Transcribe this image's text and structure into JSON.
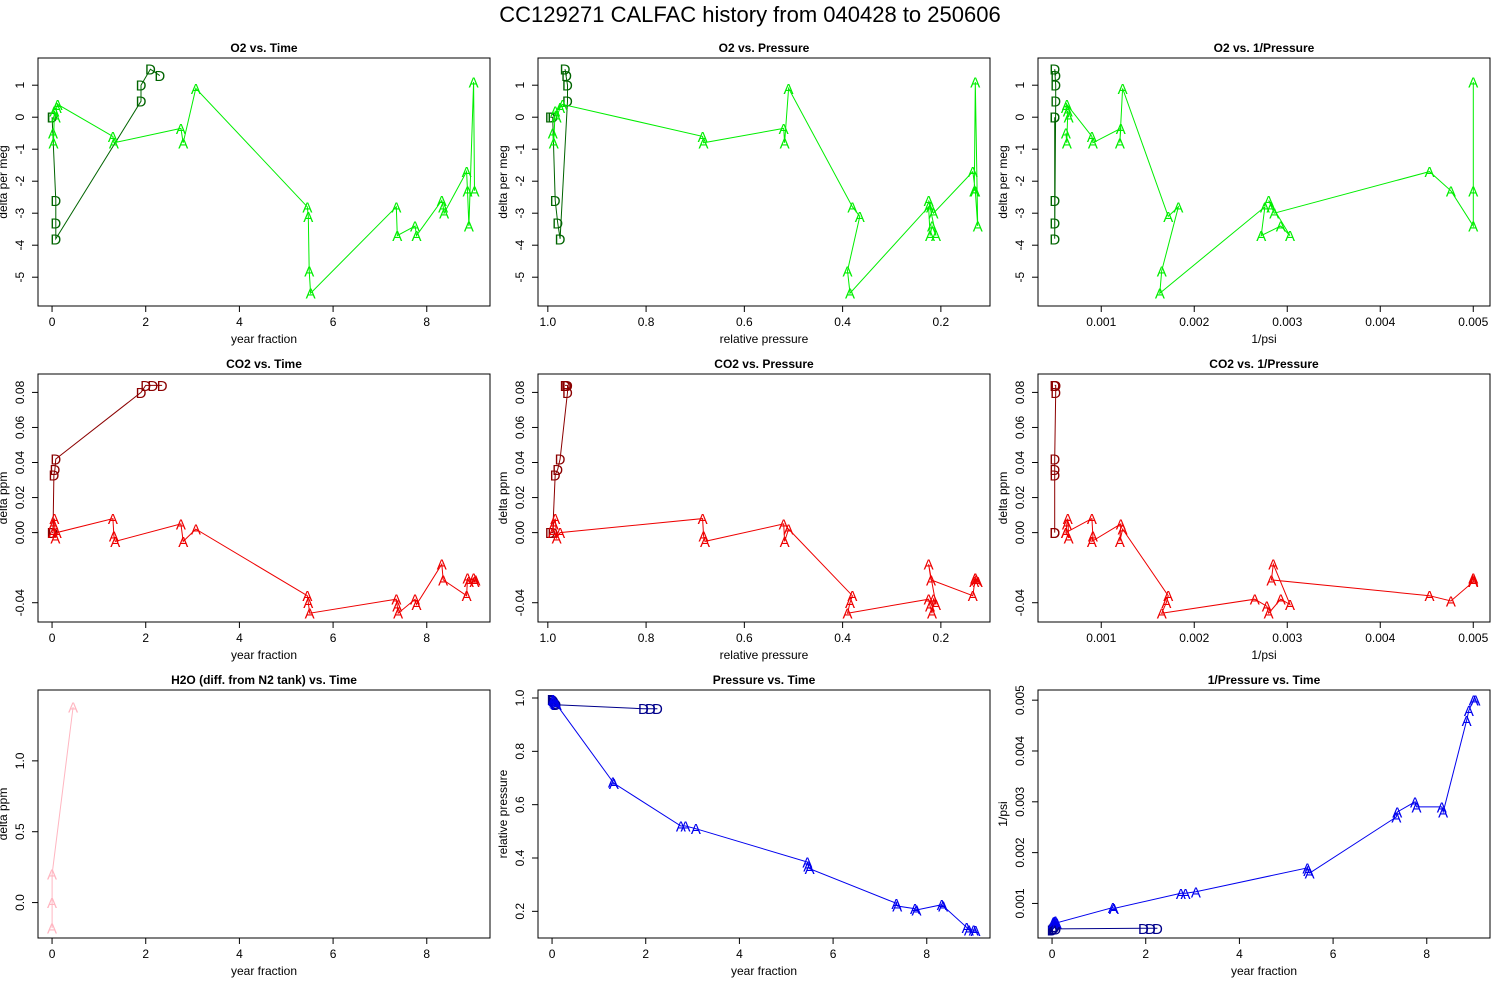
{
  "page": {
    "title": "CC129271   CALFAC history from  040428  to  250606"
  },
  "chart_data": [
    {
      "type": "scatter",
      "title": "O2 vs. Time",
      "xlabel": "year fraction",
      "ylabel": "delta per meg",
      "xlim": [
        -0.3,
        9.35
      ],
      "ylim": [
        -5.9,
        1.85
      ],
      "xticks": [
        "0",
        "2",
        "4",
        "6",
        "8"
      ],
      "yticks": [
        "-5",
        "-4",
        "-3",
        "-2",
        "-1",
        "0",
        "1"
      ],
      "series": [
        {
          "marker": "D",
          "color": "#006400",
          "connected": true,
          "x": [
            0.0,
            0.0,
            0.08,
            0.08,
            0.08,
            1.9,
            1.9,
            2.1,
            2.3
          ],
          "y": [
            0.0,
            0.0,
            -2.6,
            -3.3,
            -3.8,
            0.5,
            1.0,
            1.5,
            1.3
          ]
        },
        {
          "marker": "A",
          "color": "#00ee00",
          "connected": true,
          "x": [
            0.02,
            0.03,
            0.05,
            0.08,
            0.1,
            0.12,
            1.3,
            1.32,
            2.75,
            2.8,
            3.07,
            5.45,
            5.47,
            5.49,
            5.52,
            7.35,
            7.37,
            7.75,
            7.78,
            8.32,
            8.35,
            8.37,
            8.85,
            8.87,
            8.9,
            9.0,
            9.02
          ],
          "y": [
            -0.5,
            -0.8,
            0.2,
            0.0,
            0.3,
            0.4,
            -0.6,
            -0.8,
            -0.35,
            -0.8,
            0.9,
            -2.8,
            -3.1,
            -4.8,
            -5.5,
            -2.8,
            -3.7,
            -3.4,
            -3.7,
            -2.6,
            -2.8,
            -3.0,
            -1.7,
            -2.3,
            -3.4,
            1.1,
            -2.3
          ]
        }
      ]
    },
    {
      "type": "scatter",
      "title": "O2 vs. Pressure",
      "xlabel": "relative pressure",
      "ylabel": "delta per meg",
      "xlim": [
        1.02,
        0.1
      ],
      "ylim": [
        -5.9,
        1.85
      ],
      "xticks": [
        "1.0",
        "0.8",
        "0.6",
        "0.4",
        "0.2"
      ],
      "yticks": [
        "-5",
        "-4",
        "-3",
        "-2",
        "-1",
        "0",
        "1"
      ],
      "series": [
        {
          "marker": "D",
          "color": "#006400",
          "connected": true,
          "x": [
            0.995,
            0.99,
            0.985,
            0.98,
            0.975,
            0.96,
            0.96,
            0.965,
            0.962
          ],
          "y": [
            0.0,
            0.0,
            -2.6,
            -3.3,
            -3.8,
            0.5,
            1.0,
            1.5,
            1.3
          ]
        },
        {
          "marker": "A",
          "color": "#00ee00",
          "connected": true,
          "x": [
            0.99,
            0.988,
            0.985,
            0.982,
            0.975,
            0.97,
            0.685,
            0.683,
            0.52,
            0.518,
            0.51,
            0.38,
            0.365,
            0.39,
            0.385,
            0.225,
            0.222,
            0.218,
            0.21,
            0.225,
            0.22,
            0.215,
            0.135,
            0.13,
            0.125,
            0.13,
            0.132
          ],
          "y": [
            -0.5,
            -0.8,
            0.2,
            0.0,
            0.3,
            0.4,
            -0.6,
            -0.8,
            -0.35,
            -0.8,
            0.9,
            -2.8,
            -3.1,
            -4.8,
            -5.5,
            -2.8,
            -3.7,
            -3.4,
            -3.7,
            -2.6,
            -2.8,
            -3.0,
            -1.7,
            -2.3,
            -3.4,
            1.1,
            -2.3
          ]
        }
      ]
    },
    {
      "type": "scatter",
      "title": "O2 vs. 1/Pressure",
      "xlabel": "1/psi",
      "ylabel": "delta per meg",
      "xlim": [
        0.00032,
        0.00518
      ],
      "ylim": [
        -5.9,
        1.85
      ],
      "xticks": [
        "0.001",
        "0.002",
        "0.003",
        "0.004",
        "0.005"
      ],
      "yticks": [
        "-5",
        "-4",
        "-3",
        "-2",
        "-1",
        "0",
        "1"
      ],
      "series": [
        {
          "marker": "D",
          "color": "#006400",
          "connected": true,
          "x": [
            0.0005,
            0.0005,
            0.0005,
            0.0005,
            0.0005,
            0.00051,
            0.00051,
            0.0005,
            0.00051
          ],
          "y": [
            0.0,
            0.0,
            -2.6,
            -3.3,
            -3.8,
            0.5,
            1.0,
            1.5,
            1.3
          ]
        },
        {
          "marker": "A",
          "color": "#00ee00",
          "connected": true,
          "x": [
            0.00062,
            0.00063,
            0.00064,
            0.00065,
            0.00062,
            0.00063,
            0.0009,
            0.00091,
            0.00121,
            0.0012,
            0.00123,
            0.00172,
            0.00183,
            0.00165,
            0.00163,
            0.00276,
            0.00272,
            0.00293,
            0.00303,
            0.0028,
            0.00283,
            0.00286,
            0.00453,
            0.00476,
            0.005,
            0.005,
            0.005
          ],
          "y": [
            -0.5,
            -0.8,
            0.2,
            0.0,
            0.3,
            0.4,
            -0.6,
            -0.8,
            -0.35,
            -0.8,
            0.9,
            -3.1,
            -2.8,
            -4.8,
            -5.5,
            -2.8,
            -3.7,
            -3.4,
            -3.7,
            -2.6,
            -2.8,
            -3.0,
            -1.7,
            -2.3,
            -3.4,
            1.1,
            -2.3
          ]
        }
      ]
    },
    {
      "type": "scatter",
      "title": "CO2 vs. Time",
      "xlabel": "year fraction",
      "ylabel": "delta ppm",
      "xlim": [
        -0.3,
        9.35
      ],
      "ylim": [
        -0.051,
        0.0905
      ],
      "xticks": [
        "0",
        "2",
        "4",
        "6",
        "8"
      ],
      "yticks": [
        "-0.04",
        "0.00",
        "0.02",
        "0.04",
        "0.06",
        "0.08"
      ],
      "series": [
        {
          "marker": "D",
          "color": "#8b0000",
          "connected": true,
          "x": [
            0.0,
            0.02,
            0.04,
            0.06,
            0.08,
            1.9,
            2.0,
            2.15,
            2.35
          ],
          "y": [
            0.0,
            0.0,
            0.033,
            0.036,
            0.042,
            0.08,
            0.084,
            0.084,
            0.084
          ]
        },
        {
          "marker": "A",
          "color": "#ee0000",
          "connected": true,
          "x": [
            0.02,
            0.03,
            0.05,
            0.07,
            0.1,
            1.3,
            1.32,
            1.35,
            2.75,
            2.8,
            3.07,
            5.45,
            5.47,
            5.5,
            7.35,
            7.37,
            7.39,
            7.75,
            7.78,
            8.32,
            8.35,
            8.85,
            8.87,
            8.9,
            9.0,
            9.02,
            9.04
          ],
          "y": [
            0.0,
            0.005,
            0.008,
            -0.003,
            0.0,
            0.008,
            -0.002,
            -0.005,
            0.005,
            -0.005,
            0.002,
            -0.036,
            -0.04,
            -0.046,
            -0.038,
            -0.042,
            -0.046,
            -0.038,
            -0.041,
            -0.018,
            -0.027,
            -0.036,
            -0.026,
            -0.028,
            -0.026,
            -0.028,
            -0.027
          ]
        }
      ]
    },
    {
      "type": "scatter",
      "title": "CO2 vs. Pressure",
      "xlabel": "relative pressure",
      "ylabel": "delta ppm",
      "xlim": [
        1.02,
        0.1
      ],
      "ylim": [
        -0.051,
        0.0905
      ],
      "xticks": [
        "1.0",
        "0.8",
        "0.6",
        "0.4",
        "0.2"
      ],
      "yticks": [
        "-0.04",
        "0.00",
        "0.02",
        "0.04",
        "0.06",
        "0.08"
      ],
      "series": [
        {
          "marker": "D",
          "color": "#8b0000",
          "connected": true,
          "x": [
            0.995,
            0.99,
            0.985,
            0.98,
            0.975,
            0.96,
            0.96,
            0.965,
            0.962
          ],
          "y": [
            0.0,
            0.0,
            0.033,
            0.036,
            0.042,
            0.08,
            0.084,
            0.084,
            0.084
          ]
        },
        {
          "marker": "A",
          "color": "#ee0000",
          "connected": true,
          "x": [
            0.99,
            0.988,
            0.985,
            0.982,
            0.975,
            0.685,
            0.683,
            0.68,
            0.52,
            0.518,
            0.51,
            0.38,
            0.385,
            0.39,
            0.225,
            0.222,
            0.218,
            0.215,
            0.21,
            0.225,
            0.22,
            0.135,
            0.13,
            0.125,
            0.13,
            0.132,
            0.128
          ],
          "y": [
            0.0,
            0.005,
            0.008,
            -0.003,
            0.0,
            0.008,
            -0.002,
            -0.005,
            0.005,
            -0.005,
            0.002,
            -0.036,
            -0.04,
            -0.046,
            -0.038,
            -0.042,
            -0.046,
            -0.038,
            -0.041,
            -0.018,
            -0.027,
            -0.036,
            -0.026,
            -0.028,
            -0.026,
            -0.028,
            -0.027
          ]
        }
      ]
    },
    {
      "type": "scatter",
      "title": "CO2 vs. 1/Pressure",
      "xlabel": "1/psi",
      "ylabel": "delta ppm",
      "xlim": [
        0.00032,
        0.00518
      ],
      "ylim": [
        -0.051,
        0.0905
      ],
      "xticks": [
        "0.001",
        "0.002",
        "0.003",
        "0.004",
        "0.005"
      ],
      "yticks": [
        "-0.04",
        "0.00",
        "0.02",
        "0.04",
        "0.06",
        "0.08"
      ],
      "series": [
        {
          "marker": "D",
          "color": "#8b0000",
          "connected": true,
          "x": [
            0.0005,
            0.0005,
            0.0005,
            0.0005,
            0.0005,
            0.00051,
            0.00051,
            0.0005,
            0.00051
          ],
          "y": [
            0.0,
            0.0,
            0.033,
            0.036,
            0.042,
            0.08,
            0.084,
            0.084,
            0.084
          ]
        },
        {
          "marker": "A",
          "color": "#ee0000",
          "connected": true,
          "x": [
            0.00062,
            0.00063,
            0.00064,
            0.00065,
            0.00062,
            0.0009,
            0.00091,
            0.0009,
            0.00121,
            0.0012,
            0.00123,
            0.00172,
            0.0017,
            0.00165,
            0.00265,
            0.00278,
            0.0028,
            0.00293,
            0.00303,
            0.00285,
            0.00283,
            0.00453,
            0.00476,
            0.005,
            0.005,
            0.005,
            0.005
          ],
          "y": [
            0.0,
            0.005,
            0.008,
            -0.003,
            0.0,
            0.008,
            -0.002,
            -0.005,
            0.005,
            -0.005,
            0.002,
            -0.036,
            -0.04,
            -0.046,
            -0.038,
            -0.042,
            -0.046,
            -0.038,
            -0.041,
            -0.018,
            -0.027,
            -0.036,
            -0.039,
            -0.028,
            -0.026,
            -0.028,
            -0.027
          ]
        }
      ]
    },
    {
      "type": "scatter",
      "title": "H2O (diff. from N2 tank) vs. Time",
      "xlabel": "year fraction",
      "ylabel": "delta ppm",
      "xlim": [
        -0.3,
        9.35
      ],
      "ylim": [
        -0.25,
        1.5
      ],
      "xticks": [
        "0",
        "2",
        "4",
        "6",
        "8"
      ],
      "yticks": [
        "0.0",
        "0.5",
        "1.0"
      ],
      "series": [
        {
          "marker": "A",
          "color": "#ffb6c1",
          "connected": true,
          "x": [
            0.0,
            0.0,
            0.0,
            0.45
          ],
          "y": [
            -0.18,
            0.0,
            0.2,
            1.38
          ]
        }
      ]
    },
    {
      "type": "scatter",
      "title": "Pressure vs. Time",
      "xlabel": "year fraction",
      "ylabel": "relative pressure",
      "xlim": [
        -0.3,
        9.35
      ],
      "ylim": [
        0.1,
        1.03
      ],
      "xticks": [
        "0",
        "2",
        "4",
        "6",
        "8"
      ],
      "yticks": [
        "0.2",
        "0.4",
        "0.6",
        "0.8",
        "1.0"
      ],
      "series": [
        {
          "marker": "D",
          "color": "#00008b",
          "connected": true,
          "x": [
            0.0,
            0.02,
            0.04,
            0.06,
            0.08,
            1.95,
            2.1,
            2.25
          ],
          "y": [
            0.995,
            0.99,
            0.985,
            0.98,
            0.975,
            0.96,
            0.96,
            0.96
          ]
        },
        {
          "marker": "A",
          "color": "#0000ee",
          "connected": true,
          "x": [
            0.02,
            0.03,
            0.05,
            0.07,
            0.1,
            1.3,
            1.32,
            2.75,
            2.85,
            3.07,
            5.45,
            5.47,
            5.5,
            7.35,
            7.37,
            7.75,
            7.78,
            8.32,
            8.35,
            8.85,
            8.9,
            9.0,
            9.04
          ],
          "y": [
            0.995,
            0.99,
            0.985,
            0.98,
            0.975,
            0.685,
            0.68,
            0.52,
            0.52,
            0.51,
            0.385,
            0.37,
            0.36,
            0.23,
            0.22,
            0.21,
            0.205,
            0.225,
            0.22,
            0.14,
            0.13,
            0.13,
            0.128
          ]
        }
      ]
    },
    {
      "type": "scatter",
      "title": "1/Pressure vs. Time",
      "xlabel": "year fraction",
      "ylabel": "1/psi",
      "xlim": [
        -0.3,
        9.35
      ],
      "ylim": [
        0.00032,
        0.0052
      ],
      "xticks": [
        "0",
        "2",
        "4",
        "6",
        "8"
      ],
      "yticks": [
        "0.001",
        "0.002",
        "0.003",
        "0.004",
        "0.005"
      ],
      "series": [
        {
          "marker": "D",
          "color": "#00008b",
          "connected": true,
          "x": [
            0.0,
            0.02,
            0.04,
            0.06,
            0.08,
            1.95,
            2.1,
            2.25
          ],
          "y": [
            0.00048,
            0.0005,
            0.00052,
            0.00055,
            0.0005,
            0.00051,
            0.00051,
            0.00051
          ]
        },
        {
          "marker": "A",
          "color": "#0000ee",
          "connected": true,
          "x": [
            0.02,
            0.03,
            0.05,
            0.07,
            0.1,
            1.3,
            1.32,
            2.75,
            2.85,
            3.07,
            5.45,
            5.47,
            5.5,
            7.35,
            7.37,
            7.75,
            7.78,
            8.32,
            8.35,
            8.85,
            8.9,
            9.0,
            9.04
          ],
          "y": [
            0.00062,
            0.00063,
            0.00064,
            0.00065,
            0.00062,
            0.00092,
            0.0009,
            0.0012,
            0.0012,
            0.00123,
            0.0017,
            0.00165,
            0.0016,
            0.0027,
            0.0028,
            0.003,
            0.0029,
            0.0029,
            0.0028,
            0.0046,
            0.0048,
            0.005,
            0.005
          ]
        }
      ]
    }
  ]
}
